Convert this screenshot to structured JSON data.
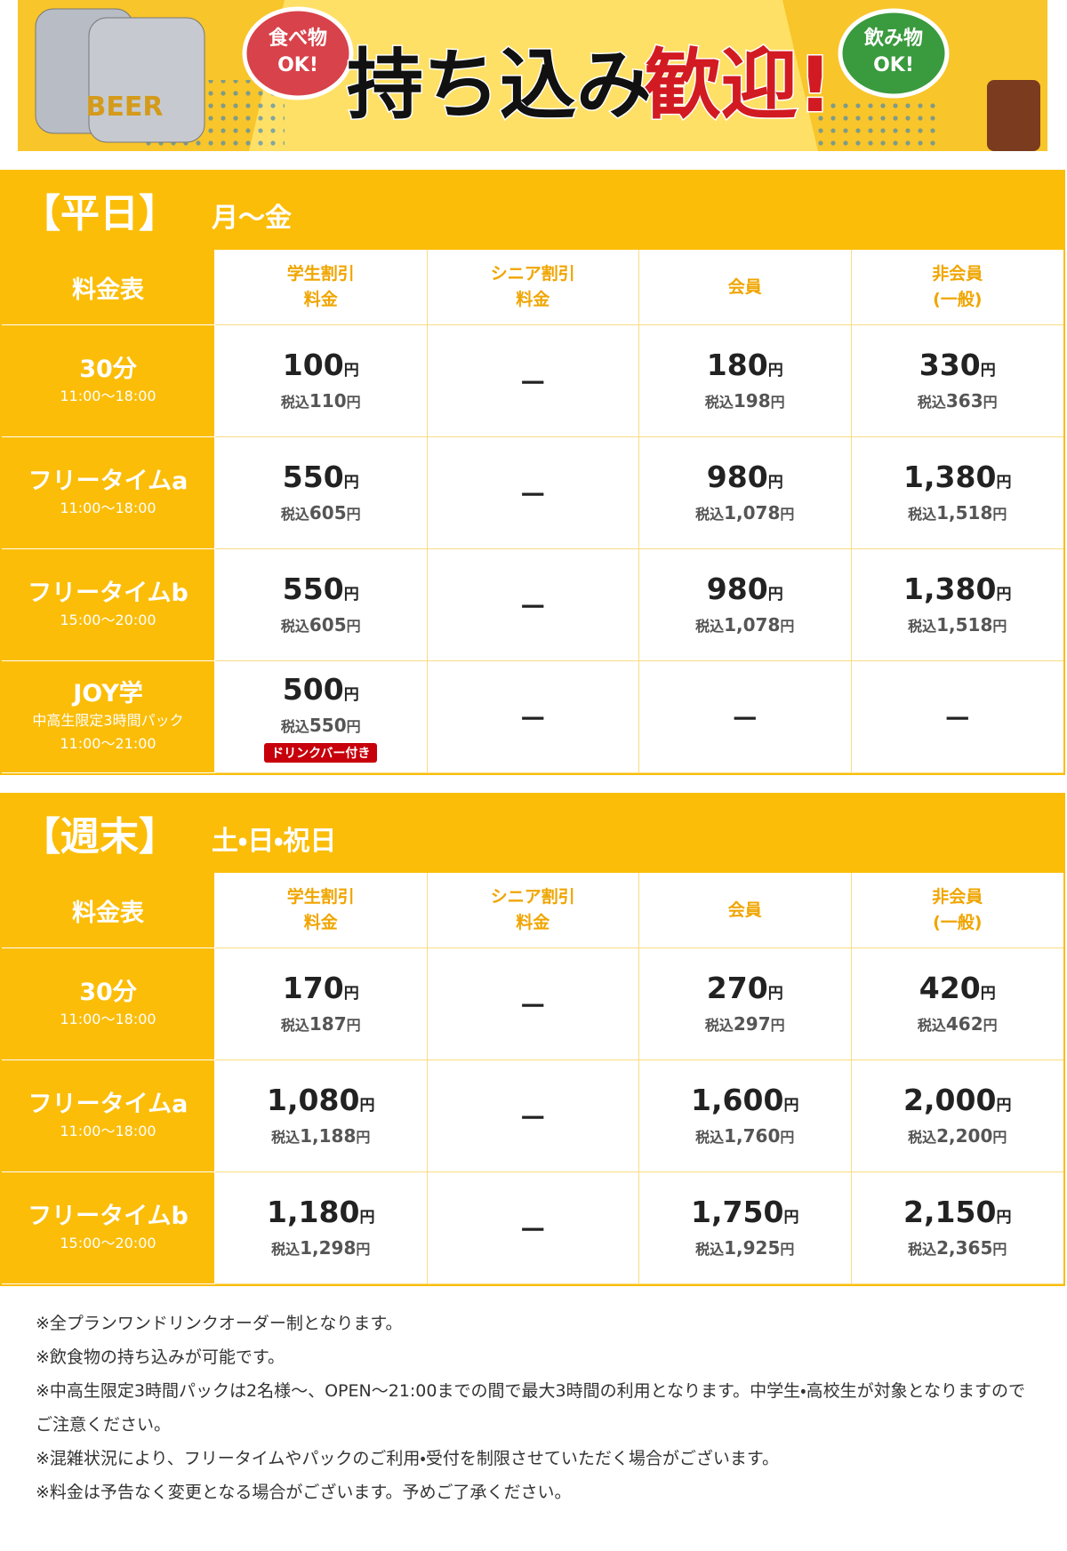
{
  "banner": {
    "beer": "BEER",
    "left_bubble": [
      "食べ物",
      "OK!"
    ],
    "title_black": "持ち込み",
    "title_red": "歓迎!",
    "right_bubble": [
      "飲み物",
      "OK!"
    ]
  },
  "yen": "円",
  "tax_prefix": "税込",
  "sections": [
    {
      "title": "【平日】",
      "days": "月～金",
      "corner": "料金表",
      "columns": [
        [
          "学生割引",
          "料金"
        ],
        [
          "シニア割引",
          "料金"
        ],
        [
          "会員"
        ],
        [
          "非会員",
          "(一般)"
        ]
      ],
      "rows": [
        {
          "label": "30分",
          "sub": [
            "11:00～18:00"
          ],
          "cells": [
            {
              "price": "100",
              "tax": "110"
            },
            "－",
            {
              "price": "180",
              "tax": "198"
            },
            {
              "price": "330",
              "tax": "363"
            }
          ]
        },
        {
          "label": "フリータイムa",
          "sub": [
            "11:00～18:00"
          ],
          "cells": [
            {
              "price": "550",
              "tax": "605"
            },
            "－",
            {
              "price": "980",
              "tax": "1,078"
            },
            {
              "price": "1,380",
              "tax": "1,518"
            }
          ]
        },
        {
          "label": "フリータイムb",
          "sub": [
            "15:00～20:00"
          ],
          "cells": [
            {
              "price": "550",
              "tax": "605"
            },
            "－",
            {
              "price": "980",
              "tax": "1,078"
            },
            {
              "price": "1,380",
              "tax": "1,518"
            }
          ]
        },
        {
          "label": "JOY学",
          "sub": [
            "中高生限定3時間パック",
            "11:00～21:00"
          ],
          "cells": [
            {
              "price": "500",
              "tax": "550",
              "badge": "ドリンクバー付き"
            },
            "－",
            "－",
            "－"
          ]
        }
      ]
    },
    {
      "title": "【週末】",
      "days": "土・日・祝日",
      "corner": "料金表",
      "columns": [
        [
          "学生割引",
          "料金"
        ],
        [
          "シニア割引",
          "料金"
        ],
        [
          "会員"
        ],
        [
          "非会員",
          "(一般)"
        ]
      ],
      "rows": [
        {
          "label": "30分",
          "sub": [
            "11:00～18:00"
          ],
          "cells": [
            {
              "price": "170",
              "tax": "187"
            },
            "－",
            {
              "price": "270",
              "tax": "297"
            },
            {
              "price": "420",
              "tax": "462"
            }
          ]
        },
        {
          "label": "フリータイムa",
          "sub": [
            "11:00～18:00"
          ],
          "cells": [
            {
              "price": "1,080",
              "tax": "1,188"
            },
            "－",
            {
              "price": "1,600",
              "tax": "1,760"
            },
            {
              "price": "2,000",
              "tax": "2,200"
            }
          ]
        },
        {
          "label": "フリータイムb",
          "sub": [
            "15:00～20:00"
          ],
          "cells": [
            {
              "price": "1,180",
              "tax": "1,298"
            },
            "－",
            {
              "price": "1,750",
              "tax": "1,925"
            },
            {
              "price": "2,150",
              "tax": "2,365"
            }
          ]
        }
      ]
    }
  ],
  "notes": [
    "※全プランワンドリンクオーダー制となります。",
    "※飲食物の持ち込みが可能です。",
    "※中高生限定3時間パックは2名様～、OPEN～21:00までの間で最大3時間の利用となります。中学生・高校生が対象となりますのでご注意ください。",
    "※混雑状況により、フリータイムやパックのご利用・受付を制限させていただく場合がございます。",
    "※料金は予告なく変更となる場合がございます。予めご了承ください。"
  ]
}
